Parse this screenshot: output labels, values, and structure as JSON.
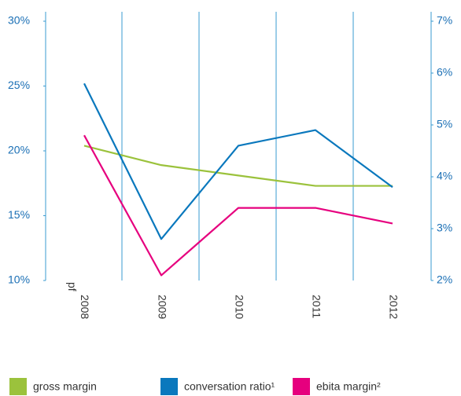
{
  "chart_data": {
    "type": "line",
    "categories": [
      "2008 pf",
      "2009",
      "2010",
      "2011",
      "2012"
    ],
    "series": [
      {
        "name": "gross margin",
        "color": "#9bc23c",
        "values": [
          20.4,
          18.9,
          18.1,
          17.3,
          17.3
        ]
      },
      {
        "name": "conversation ratio¹",
        "color": "#0a78bd",
        "axis": "y2",
        "values": [
          5.8,
          2.8,
          4.6,
          4.9,
          3.8
        ]
      },
      {
        "name": "ebita margin²",
        "color": "#e6007e",
        "axis": "y2",
        "values": [
          4.8,
          2.1,
          3.4,
          3.4,
          3.1
        ]
      }
    ],
    "ylim": [
      10,
      30
    ],
    "yticks": [
      {
        "value": 10,
        "label": "10%"
      },
      {
        "value": 15,
        "label": "15%"
      },
      {
        "value": 20,
        "label": "20%"
      },
      {
        "value": 25,
        "label": "25%"
      },
      {
        "value": 30,
        "label": "30%"
      }
    ],
    "y2lim": [
      2,
      7
    ],
    "y2ticks": [
      {
        "value": 2,
        "label": "2%"
      },
      {
        "value": 3,
        "label": "3%"
      },
      {
        "value": 4,
        "label": "4%"
      },
      {
        "value": 5,
        "label": "5%"
      },
      {
        "value": 6,
        "label": "6%"
      },
      {
        "value": 7,
        "label": "7%"
      }
    ],
    "legend": "bottom"
  }
}
